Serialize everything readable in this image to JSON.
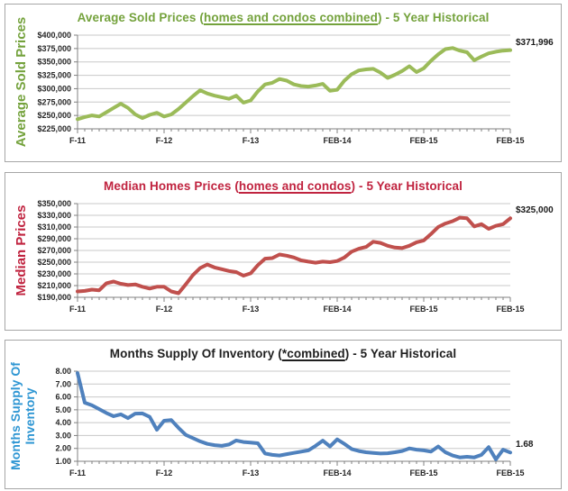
{
  "theme": {
    "panel_border": "#a6a6a6",
    "grid_color": "#c8c8c8",
    "axis_color": "#808080",
    "tick_text_color": "#262626"
  },
  "chart_data": [
    {
      "type": "line",
      "title": "Average Sold Prices (homes and condos combined) - 5 Year Historical",
      "title_pre": "Average Sold Prices (",
      "title_underline": "homes and condos combined",
      "title_post": ") - 5 Year Historical",
      "title_color": "#74a23c",
      "ylabel": "Average Sold Prices",
      "ylabel_lines": [
        "Average Sold Prices"
      ],
      "ylabel_color": "#74a23c",
      "line_color": "#9bbb59",
      "grid": true,
      "legend": "none",
      "ylim": [
        225000,
        400000
      ],
      "y_tick_labels": [
        "$400,000",
        "$375,000",
        "$350,000",
        "$325,000",
        "$300,000",
        "$275,000",
        "$250,000",
        "$225,000"
      ],
      "x_tick_labels": [
        "F-11",
        "F-12",
        "F-13",
        "FEB-14",
        "FEB-15",
        "FEB-15"
      ],
      "x_label_month_positions": [
        0,
        12,
        24,
        36,
        48,
        60
      ],
      "end_label": "$371,996",
      "values": [
        243000,
        247000,
        250000,
        248000,
        256000,
        264000,
        272000,
        264000,
        252000,
        245000,
        251000,
        255000,
        248000,
        252000,
        262000,
        274000,
        286000,
        297000,
        291000,
        287000,
        284000,
        281000,
        287000,
        274000,
        278000,
        295000,
        308000,
        311000,
        318000,
        315000,
        308000,
        305000,
        304000,
        306000,
        309000,
        296000,
        298000,
        315000,
        327000,
        334000,
        336000,
        337000,
        330000,
        320000,
        326000,
        333000,
        342000,
        331000,
        338000,
        352000,
        364000,
        374000,
        376000,
        371000,
        368000,
        353000,
        360000,
        366000,
        369000,
        371000,
        371996
      ]
    },
    {
      "type": "line",
      "title": "Median Homes Prices (homes and condos) - 5 Year Historical",
      "title_pre": "Median Homes Prices (",
      "title_underline": "homes and condos",
      "title_post": ") - 5 Year Historical",
      "title_color": "#c0233f",
      "ylabel": "Median Prices",
      "ylabel_lines": [
        "Median Prices"
      ],
      "ylabel_color": "#c0233f",
      "line_color": "#c0504d",
      "grid": true,
      "legend": "none",
      "ylim": [
        190000,
        350000
      ],
      "y_tick_labels": [
        "$350,000",
        "$330,000",
        "$310,000",
        "$290,000",
        "$270,000",
        "$250,000",
        "$230,000",
        "$210,000",
        "$190,000"
      ],
      "x_tick_labels": [
        "F-11",
        "F-12",
        "F-13",
        "FEB-14",
        "FEB-15",
        "FEB-15"
      ],
      "x_label_month_positions": [
        0,
        12,
        24,
        36,
        48,
        60
      ],
      "end_label": "$325,000",
      "values": [
        200000,
        201000,
        203000,
        202000,
        214000,
        217000,
        213000,
        211000,
        212000,
        208000,
        205000,
        208000,
        208000,
        200000,
        197000,
        212000,
        228000,
        240000,
        246000,
        241000,
        238000,
        235000,
        233000,
        227000,
        231000,
        245000,
        256000,
        257000,
        263000,
        261000,
        258000,
        253000,
        251000,
        249000,
        251000,
        250000,
        252000,
        258000,
        268000,
        273000,
        276000,
        285000,
        283000,
        278000,
        275000,
        274000,
        278000,
        284000,
        287000,
        298000,
        310000,
        316000,
        320000,
        326000,
        325000,
        311000,
        315000,
        307000,
        312000,
        315000,
        325000
      ]
    },
    {
      "type": "line",
      "title": "Months Supply Of Inventory (*combined) - 5 Year Historical",
      "title_pre": "Months Supply Of Inventory (",
      "title_underline": "*combined",
      "title_post": ") - 5 Year Historical",
      "title_color": "#1f1f1f",
      "ylabel": "Months Supply Of Inventory",
      "ylabel_lines": [
        "Months Supply Of",
        "Inventory"
      ],
      "ylabel_color": "#2e96d3",
      "line_color": "#4f81bd",
      "grid": true,
      "legend": "none",
      "ylim": [
        1,
        8
      ],
      "y_tick_labels": [
        "8.00",
        "7.00",
        "6.00",
        "5.00",
        "4.00",
        "3.00",
        "2.00",
        "1.00"
      ],
      "x_tick_labels": [
        "F-11",
        "F-12",
        "F-13",
        "FEB-14",
        "FEB-15",
        "FEB-15"
      ],
      "x_label_month_positions": [
        0,
        12,
        24,
        36,
        48,
        60
      ],
      "end_label": "1.68",
      "values": [
        7.85,
        5.55,
        5.35,
        5.05,
        4.75,
        4.5,
        4.65,
        4.35,
        4.7,
        4.72,
        4.45,
        3.45,
        4.15,
        4.2,
        3.6,
        3.05,
        2.8,
        2.55,
        2.35,
        2.25,
        2.2,
        2.3,
        2.62,
        2.5,
        2.45,
        2.4,
        1.6,
        1.5,
        1.45,
        1.55,
        1.65,
        1.75,
        1.85,
        2.2,
        2.6,
        2.15,
        2.7,
        2.35,
        1.95,
        1.8,
        1.7,
        1.65,
        1.6,
        1.62,
        1.7,
        1.8,
        2.0,
        1.9,
        1.85,
        1.75,
        2.15,
        1.7,
        1.45,
        1.3,
        1.35,
        1.3,
        1.5,
        2.1,
        1.15,
        1.9,
        1.68
      ]
    }
  ]
}
